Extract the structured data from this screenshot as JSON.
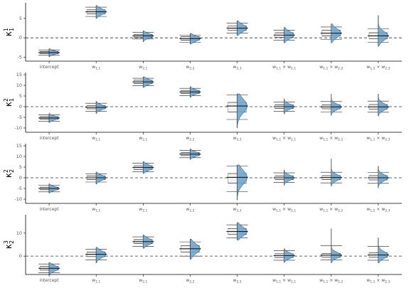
{
  "chart_data": [
    {
      "type": "violin-boxplot",
      "title": "",
      "ylabel_main": "κ",
      "ylabel_sup": "1",
      "ylabel_sub": "1",
      "ylim": [
        -6,
        9
      ],
      "yticks": [
        -5,
        0,
        5
      ],
      "xlabel": "",
      "categories": [
        {
          "main": "intercept",
          "sub": ""
        },
        {
          "main": "w",
          "sub": "1,1"
        },
        {
          "main": "w",
          "sub": "2,1"
        },
        {
          "main": "w",
          "sub": "2,2"
        },
        {
          "main": "w",
          "sub": "2,3"
        },
        {
          "main": "w",
          "sub": "1,1",
          "main2": "w",
          "sub2": "2,1"
        },
        {
          "main": "w",
          "sub": "1,1",
          "main2": "w",
          "sub2": "2,2"
        },
        {
          "main": "w",
          "sub": "1,1",
          "main2": "w",
          "sub2": "2,3"
        }
      ],
      "reference_line": 0,
      "series": [
        {
          "name": "",
          "summary": [
            {
              "q05": -4.5,
              "q25": -4.1,
              "median": -3.8,
              "q75": -3.5,
              "q95": -3.1,
              "min": -4.9,
              "max": -2.8
            },
            {
              "q05": 5.5,
              "q25": 6.2,
              "median": 6.7,
              "q75": 7.2,
              "q95": 7.9,
              "min": 5.0,
              "max": 8.3
            },
            {
              "q05": -0.3,
              "q25": 0.1,
              "median": 0.5,
              "q75": 0.9,
              "q95": 1.4,
              "min": -1.0,
              "max": 1.8
            },
            {
              "q05": -1.2,
              "q25": -0.6,
              "median": -0.2,
              "q75": 0.3,
              "q95": 0.7,
              "min": -1.6,
              "max": 1.1
            },
            {
              "q05": 1.2,
              "q25": 1.9,
              "median": 2.5,
              "q75": 3.1,
              "q95": 3.8,
              "min": 0.6,
              "max": 4.4
            },
            {
              "q05": -0.6,
              "q25": 0.1,
              "median": 0.7,
              "q75": 1.3,
              "q95": 2.0,
              "min": -1.3,
              "max": 2.7
            },
            {
              "q05": -0.4,
              "q25": 0.5,
              "median": 1.2,
              "q75": 2.0,
              "q95": 2.8,
              "min": -1.3,
              "max": 3.6
            },
            {
              "q05": -1.2,
              "q25": -0.2,
              "median": 0.5,
              "q75": 1.3,
              "q95": 2.3,
              "min": -2.2,
              "max": 5.8
            }
          ]
        }
      ]
    },
    {
      "type": "violin-boxplot",
      "title": "",
      "ylabel_main": "κ",
      "ylabel_sup": "2",
      "ylabel_sub": "1",
      "ylim": [
        -12,
        16
      ],
      "yticks": [
        -10,
        -5,
        0,
        5,
        10,
        15
      ],
      "xlabel": "",
      "categories": [
        {
          "main": "intercept",
          "sub": ""
        },
        {
          "main": "w",
          "sub": "1,1"
        },
        {
          "main": "w",
          "sub": "2,1"
        },
        {
          "main": "w",
          "sub": "2,2"
        },
        {
          "main": "w",
          "sub": "2,3"
        },
        {
          "main": "w",
          "sub": "1,1",
          "main2": "w",
          "sub2": "2,1"
        },
        {
          "main": "w",
          "sub": "1,1",
          "main2": "w",
          "sub2": "2,2"
        },
        {
          "main": "w",
          "sub": "1,1",
          "main2": "w",
          "sub2": "2,3"
        }
      ],
      "reference_line": 0,
      "series": [
        {
          "name": "",
          "summary": [
            {
              "q05": -6.8,
              "q25": -5.9,
              "median": -5.3,
              "q75": -4.7,
              "q95": -3.9,
              "min": -7.5,
              "max": -3.2
            },
            {
              "q05": -2.2,
              "q25": -1.0,
              "median": -0.3,
              "q75": 0.5,
              "q95": 1.6,
              "min": -3.2,
              "max": 2.5
            },
            {
              "q05": 9.8,
              "q25": 10.8,
              "median": 11.6,
              "q75": 12.4,
              "q95": 13.3,
              "min": 9.0,
              "max": 14.0
            },
            {
              "q05": 5.2,
              "q25": 6.2,
              "median": 6.9,
              "q75": 7.6,
              "q95": 8.6,
              "min": 4.4,
              "max": 9.4
            },
            {
              "q05": -6.0,
              "q25": -2.5,
              "median": 0.3,
              "q75": 2.0,
              "q95": 5.5,
              "min": -10.0,
              "max": 6.0
            },
            {
              "q05": -2.2,
              "q25": -0.8,
              "median": 0.0,
              "q75": 0.8,
              "q95": 2.2,
              "min": -3.5,
              "max": 3.8
            },
            {
              "q05": -2.5,
              "q25": -1.0,
              "median": -0.1,
              "q75": 0.8,
              "q95": 2.4,
              "min": -4.2,
              "max": 6.0
            },
            {
              "q05": -2.6,
              "q25": -1.1,
              "median": -0.1,
              "q75": 1.0,
              "q95": 2.6,
              "min": -4.5,
              "max": 6.0
            }
          ]
        }
      ]
    },
    {
      "type": "violin-boxplot",
      "title": "",
      "ylabel_main": "κ",
      "ylabel_sup": "2",
      "ylabel_sub": "2",
      "ylim": [
        -12,
        16
      ],
      "yticks": [
        -10,
        -5,
        0,
        5,
        10,
        15
      ],
      "xlabel": "",
      "categories": [
        {
          "main": "intercept",
          "sub": ""
        },
        {
          "main": "w",
          "sub": "1,1"
        },
        {
          "main": "w",
          "sub": "2,1"
        },
        {
          "main": "w",
          "sub": "2,2"
        },
        {
          "main": "w",
          "sub": "2,3"
        },
        {
          "main": "w",
          "sub": "1,1",
          "main2": "w",
          "sub2": "2,1"
        },
        {
          "main": "w",
          "sub": "1,1",
          "main2": "w",
          "sub2": "2,2"
        },
        {
          "main": "w",
          "sub": "1,1",
          "main2": "w",
          "sub2": "2,3"
        }
      ],
      "reference_line": 0,
      "series": [
        {
          "name": "",
          "summary": [
            {
              "q05": -6.6,
              "q25": -5.6,
              "median": -5.0,
              "q75": -4.4,
              "q95": -3.5,
              "min": -7.2,
              "max": -2.8
            },
            {
              "q05": -2.0,
              "q25": -0.8,
              "median": 0.0,
              "q75": 0.8,
              "q95": 1.9,
              "min": -3.0,
              "max": 2.7
            },
            {
              "q05": 2.8,
              "q25": 3.9,
              "median": 4.8,
              "q75": 5.6,
              "q95": 6.8,
              "min": 2.0,
              "max": 7.6
            },
            {
              "q05": 9.4,
              "q25": 10.4,
              "median": 11.1,
              "q75": 11.8,
              "q95": 12.8,
              "min": 8.6,
              "max": 13.5
            },
            {
              "q05": -6.5,
              "q25": -2.5,
              "median": 0.2,
              "q75": 2.0,
              "q95": 5.5,
              "min": -10.5,
              "max": 6.0
            },
            {
              "q05": -2.2,
              "q25": -0.8,
              "median": 0.0,
              "q75": 0.8,
              "q95": 2.3,
              "min": -3.6,
              "max": 3.8
            },
            {
              "q05": -2.4,
              "q25": -0.9,
              "median": 0.1,
              "q75": 1.0,
              "q95": 2.6,
              "min": -4.0,
              "max": 9.0
            },
            {
              "q05": -2.6,
              "q25": -1.0,
              "median": 0.0,
              "q75": 1.0,
              "q95": 2.5,
              "min": -4.8,
              "max": 5.5
            }
          ]
        }
      ]
    },
    {
      "type": "violin-boxplot",
      "title": "",
      "ylabel_main": "κ",
      "ylabel_sup": "3",
      "ylabel_sub": "2",
      "ylim": [
        -8,
        18
      ],
      "yticks": [
        0,
        10
      ],
      "xlabel": "",
      "categories": [
        {
          "main": "intercept",
          "sub": ""
        },
        {
          "main": "w",
          "sub": "1,1"
        },
        {
          "main": "w",
          "sub": "2,1"
        },
        {
          "main": "w",
          "sub": "2,2"
        },
        {
          "main": "w",
          "sub": "2,3"
        },
        {
          "main": "w",
          "sub": "1,1",
          "main2": "w",
          "sub2": "2,1"
        },
        {
          "main": "w",
          "sub": "1,1",
          "main2": "w",
          "sub2": "2,2"
        },
        {
          "main": "w",
          "sub": "1,1",
          "main2": "w",
          "sub2": "2,3"
        }
      ],
      "reference_line": 0,
      "series": [
        {
          "name": "",
          "summary": [
            {
              "q05": -7.2,
              "q25": -6.1,
              "median": -5.3,
              "q75": -4.5,
              "q95": -3.4,
              "min": -7.9,
              "max": -2.8
            },
            {
              "q05": -1.6,
              "q25": -0.2,
              "median": 0.8,
              "q75": 1.8,
              "q95": 3.0,
              "min": -3.0,
              "max": 3.8
            },
            {
              "q05": 4.2,
              "q25": 5.4,
              "median": 6.3,
              "q75": 7.2,
              "q95": 8.4,
              "min": 3.4,
              "max": 9.2
            },
            {
              "q05": 0.0,
              "q25": 1.8,
              "median": 3.2,
              "q75": 4.6,
              "q95": 6.2,
              "min": -1.4,
              "max": 7.4
            },
            {
              "q05": 8.0,
              "q25": 9.4,
              "median": 10.7,
              "q75": 12.0,
              "q95": 13.6,
              "min": 7.0,
              "max": 14.6
            },
            {
              "q05": -1.8,
              "q25": -0.6,
              "median": 0.2,
              "q75": 1.0,
              "q95": 2.4,
              "min": -2.8,
              "max": 3.2
            },
            {
              "q05": -1.6,
              "q25": -0.5,
              "median": 0.4,
              "q75": 1.2,
              "q95": 4.6,
              "min": -3.0,
              "max": 12.0
            },
            {
              "q05": -1.8,
              "q25": -0.5,
              "median": 0.5,
              "q75": 1.5,
              "q95": 4.2,
              "min": -3.0,
              "max": 8.0
            }
          ]
        }
      ]
    }
  ],
  "colors": {
    "violin_fill": "#6ea6cf",
    "violin_stroke": "#1f3f5a",
    "box_fill": "#f2f2f2",
    "box_stroke": "#8c8c8c",
    "whisker": "#1a1a1a",
    "axis": "#000000",
    "tick_text": "#555555",
    "label_text": "#000000",
    "reference_line": "#333333"
  }
}
